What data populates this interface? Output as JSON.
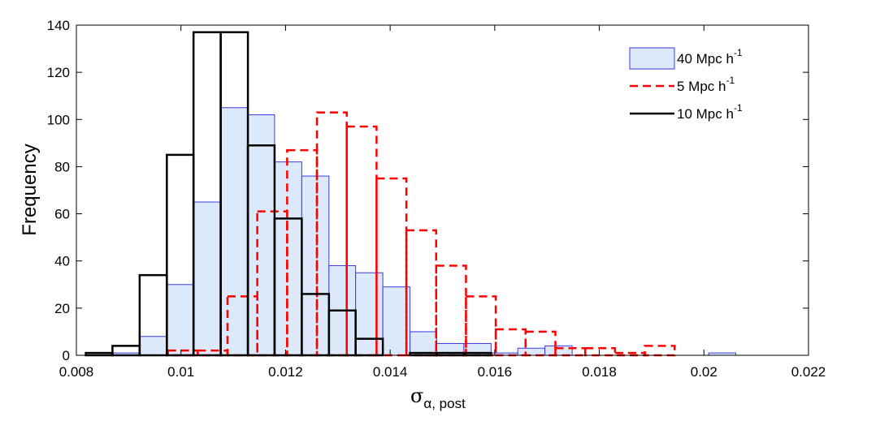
{
  "chart_data": {
    "type": "bar",
    "subtype": "histogram",
    "xlabel_symbol": "σ",
    "xlabel_subscript": "α, post",
    "ylabel": "Frequency",
    "xlim": [
      0.008,
      0.022
    ],
    "ylim": [
      0,
      140
    ],
    "x_ticks": [
      "0.008",
      "0.01",
      "0.012",
      "0.014",
      "0.016",
      "0.018",
      "0.02",
      "0.022"
    ],
    "x_tick_values": [
      0.008,
      0.01,
      0.012,
      0.014,
      0.016,
      0.018,
      0.02,
      0.022
    ],
    "y_ticks": [
      "0",
      "20",
      "40",
      "60",
      "80",
      "100",
      "120",
      "140"
    ],
    "y_tick_values": [
      0,
      20,
      40,
      60,
      80,
      100,
      120,
      140
    ],
    "legend_position": "top-right",
    "series": [
      {
        "name": "40 Mpc h",
        "name_superscript": "-1",
        "style": "filled",
        "fill_color": "#dce9fa",
        "line_color": "#3a3ae0",
        "bins": [
          {
            "x0": 0.00818,
            "x1": 0.00869,
            "value": 1
          },
          {
            "x0": 0.00869,
            "x1": 0.00921,
            "value": 1
          },
          {
            "x0": 0.00921,
            "x1": 0.00973,
            "value": 8
          },
          {
            "x0": 0.00973,
            "x1": 0.01024,
            "value": 30
          },
          {
            "x0": 0.01024,
            "x1": 0.01076,
            "value": 65
          },
          {
            "x0": 0.01076,
            "x1": 0.01128,
            "value": 105
          },
          {
            "x0": 0.01128,
            "x1": 0.01179,
            "value": 102
          },
          {
            "x0": 0.01179,
            "x1": 0.01231,
            "value": 82
          },
          {
            "x0": 0.01231,
            "x1": 0.01283,
            "value": 76
          },
          {
            "x0": 0.01283,
            "x1": 0.01334,
            "value": 38
          },
          {
            "x0": 0.01334,
            "x1": 0.01386,
            "value": 35
          },
          {
            "x0": 0.01386,
            "x1": 0.01438,
            "value": 29
          },
          {
            "x0": 0.01438,
            "x1": 0.01489,
            "value": 10
          },
          {
            "x0": 0.01489,
            "x1": 0.01541,
            "value": 5
          },
          {
            "x0": 0.01541,
            "x1": 0.01593,
            "value": 5
          },
          {
            "x0": 0.01593,
            "x1": 0.01644,
            "value": 1
          },
          {
            "x0": 0.01644,
            "x1": 0.01696,
            "value": 3
          },
          {
            "x0": 0.01696,
            "x1": 0.01748,
            "value": 4
          },
          {
            "x0": 0.02009,
            "x1": 0.02061,
            "value": 1
          }
        ]
      },
      {
        "name": "5 Mpc h",
        "name_superscript": "-1",
        "style": "dashed",
        "line_color": "#ff0000",
        "bins": [
          {
            "x0": 0.00975,
            "x1": 0.01032,
            "value": 2
          },
          {
            "x0": 0.01032,
            "x1": 0.01089,
            "value": 2
          },
          {
            "x0": 0.01089,
            "x1": 0.01146,
            "value": 25
          },
          {
            "x0": 0.01146,
            "x1": 0.01203,
            "value": 61
          },
          {
            "x0": 0.01203,
            "x1": 0.0126,
            "value": 87
          },
          {
            "x0": 0.0126,
            "x1": 0.01317,
            "value": 103
          },
          {
            "x0": 0.01317,
            "x1": 0.01374,
            "value": 97
          },
          {
            "x0": 0.01374,
            "x1": 0.01431,
            "value": 75
          },
          {
            "x0": 0.01431,
            "x1": 0.01488,
            "value": 53
          },
          {
            "x0": 0.01488,
            "x1": 0.01545,
            "value": 38
          },
          {
            "x0": 0.01545,
            "x1": 0.01602,
            "value": 25
          },
          {
            "x0": 0.01602,
            "x1": 0.01659,
            "value": 11
          },
          {
            "x0": 0.01659,
            "x1": 0.01716,
            "value": 10
          },
          {
            "x0": 0.01716,
            "x1": 0.01773,
            "value": 3
          },
          {
            "x0": 0.01773,
            "x1": 0.0183,
            "value": 3
          },
          {
            "x0": 0.0183,
            "x1": 0.01887,
            "value": 1
          },
          {
            "x0": 0.01887,
            "x1": 0.01944,
            "value": 4
          }
        ]
      },
      {
        "name": "10 Mpc h",
        "name_superscript": "-1",
        "style": "solid",
        "line_color": "#000000",
        "bins": [
          {
            "x0": 0.00818,
            "x1": 0.00869,
            "value": 1
          },
          {
            "x0": 0.00869,
            "x1": 0.00921,
            "value": 4
          },
          {
            "x0": 0.00921,
            "x1": 0.00973,
            "value": 34
          },
          {
            "x0": 0.00973,
            "x1": 0.01024,
            "value": 85
          },
          {
            "x0": 0.01024,
            "x1": 0.01076,
            "value": 137
          },
          {
            "x0": 0.01076,
            "x1": 0.01128,
            "value": 137
          },
          {
            "x0": 0.01128,
            "x1": 0.01179,
            "value": 89
          },
          {
            "x0": 0.01179,
            "x1": 0.01231,
            "value": 58
          },
          {
            "x0": 0.01231,
            "x1": 0.01283,
            "value": 26
          },
          {
            "x0": 0.01283,
            "x1": 0.01334,
            "value": 19
          },
          {
            "x0": 0.01334,
            "x1": 0.01386,
            "value": 7
          },
          {
            "x0": 0.01386,
            "x1": 0.01438,
            "value": 0
          },
          {
            "x0": 0.01438,
            "x1": 0.01489,
            "value": 1
          },
          {
            "x0": 0.01489,
            "x1": 0.01541,
            "value": 1
          },
          {
            "x0": 0.01541,
            "x1": 0.01593,
            "value": 1
          }
        ]
      }
    ]
  }
}
